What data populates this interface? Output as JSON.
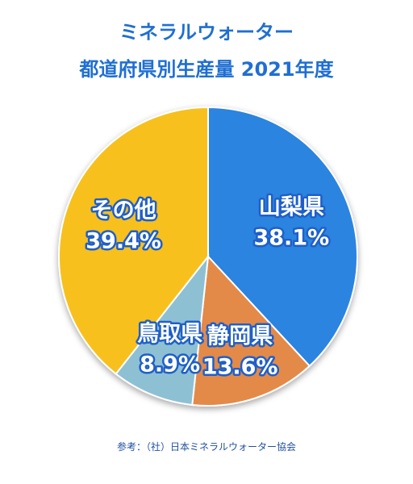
{
  "chart_data": {
    "type": "pie",
    "title": "ミネラルウォーター",
    "subtitle": "都道府県別生産量 2021年度",
    "categories": [
      "山梨県",
      "静岡県",
      "鳥取県",
      "その他"
    ],
    "values": [
      38.1,
      13.6,
      8.9,
      39.4
    ],
    "value_labels": [
      "38.1%",
      "13.6%",
      "8.9%",
      "39.4%"
    ],
    "colors": [
      "#2b84e0",
      "#e38a48",
      "#8ec0d4",
      "#f7c01c"
    ],
    "source": "参考：（社）日本ミネラルウォーター協会"
  }
}
